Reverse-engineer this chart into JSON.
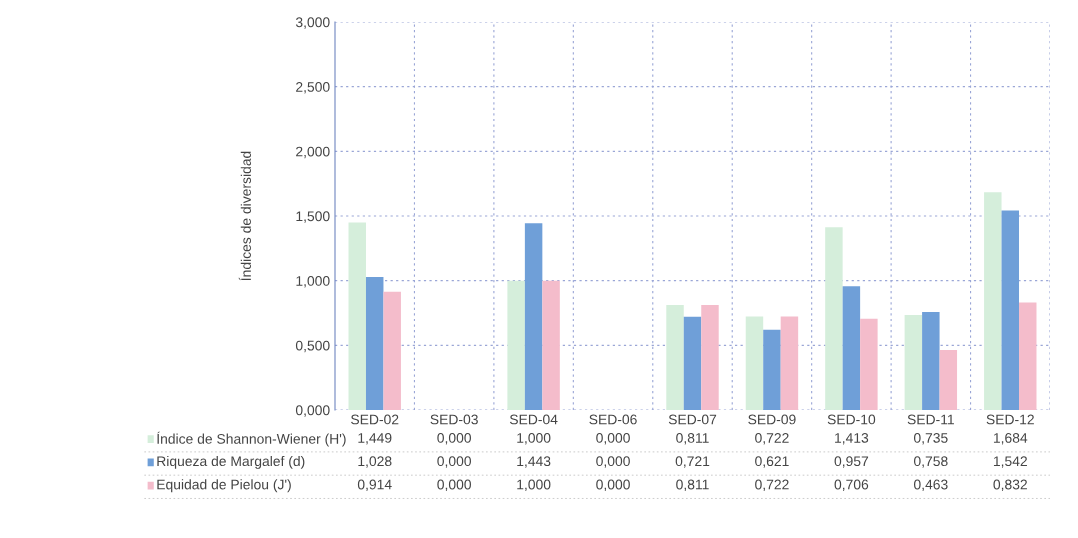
{
  "chart_data": {
    "type": "bar",
    "ylabel": "Índices de diversidad",
    "categories": [
      "SED-02",
      "SED-03",
      "SED-04",
      "SED-06",
      "SED-07",
      "SED-09",
      "SED-10",
      "SED-11",
      "SED-12"
    ],
    "series": [
      {
        "name": "Índice de Shannon-Wiener (H')",
        "color": "#d5eedb",
        "values": [
          1.449,
          0.0,
          1.0,
          0.0,
          0.811,
          0.722,
          1.413,
          0.735,
          1.684
        ],
        "value_labels": [
          "1,449",
          "0,000",
          "1,000",
          "0,000",
          "0,811",
          "0,722",
          "1,413",
          "0,735",
          "1,684"
        ]
      },
      {
        "name": "Riqueza de Margalef (d)",
        "color": "#6f9fd8",
        "values": [
          1.028,
          0.0,
          1.443,
          0.0,
          0.721,
          0.621,
          0.957,
          0.758,
          1.542
        ],
        "value_labels": [
          "1,028",
          "0,000",
          "1,443",
          "0,000",
          "0,721",
          "0,621",
          "0,957",
          "0,758",
          "1,542"
        ]
      },
      {
        "name": "Equidad de Pielou (J')",
        "color": "#f4bccb",
        "values": [
          0.914,
          0.0,
          1.0,
          0.0,
          0.811,
          0.722,
          0.706,
          0.463,
          0.832
        ],
        "value_labels": [
          "0,914",
          "0,000",
          "1,000",
          "0,000",
          "0,811",
          "0,722",
          "0,706",
          "0,463",
          "0,832"
        ]
      }
    ],
    "ylim": [
      0,
      3
    ],
    "yticks": [
      {
        "value": 0,
        "label": "0,000"
      },
      {
        "value": 0.5,
        "label": "0,500"
      },
      {
        "value": 1,
        "label": "1,000"
      },
      {
        "value": 1.5,
        "label": "1,500"
      },
      {
        "value": 2,
        "label": "2,000"
      },
      {
        "value": 2.5,
        "label": "2,500"
      },
      {
        "value": 3,
        "label": "3,000"
      }
    ],
    "grid": true,
    "legend": "bottom"
  }
}
